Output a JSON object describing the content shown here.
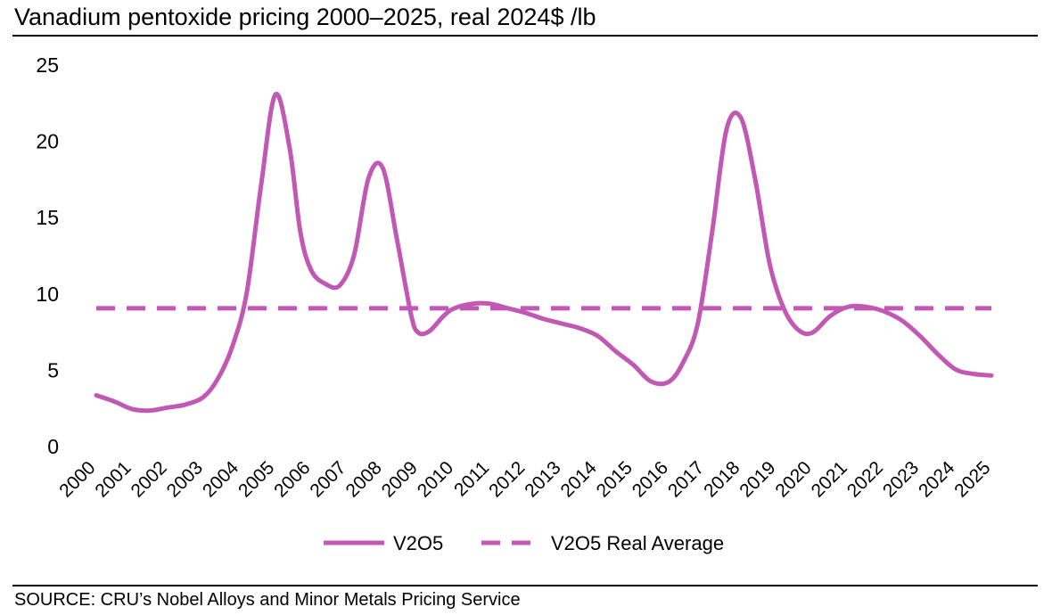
{
  "header": {
    "title": "Vanadium pentoxide pricing 2000–2025, real 2024$ /lb"
  },
  "footer": {
    "source": "SOURCE: CRU’s Nobel Alloys and Minor Metals Pricing Service"
  },
  "colors": {
    "series": "#c058b4",
    "text": "#000000",
    "rule": "#000000"
  },
  "chart_data": {
    "type": "line",
    "title": "Vanadium pentoxide pricing 2000–2025, real 2024$ /lb",
    "xlabel": "",
    "ylabel": "",
    "ylim": [
      0,
      25
    ],
    "yticks": [
      "0",
      "5",
      "10",
      "15",
      "20",
      "25"
    ],
    "grid": false,
    "legend_position": "bottom-center",
    "categories": [
      "2000",
      "2001",
      "2002",
      "2003",
      "2004",
      "2005",
      "2006",
      "2007",
      "2008",
      "2009",
      "2010",
      "2011",
      "2012",
      "2013",
      "2014",
      "2015",
      "2016",
      "2017",
      "2018",
      "2019",
      "2020",
      "2021",
      "2022",
      "2023",
      "2024",
      "2025"
    ],
    "series": [
      {
        "name": "V2O5",
        "style": "solid",
        "x": [
          2000.0,
          2000.5,
          2001.0,
          2001.5,
          2002.0,
          2002.5,
          2003.0,
          2003.4,
          2003.8,
          2004.2,
          2004.6,
          2005.0,
          2005.4,
          2005.7,
          2006.0,
          2006.4,
          2006.8,
          2007.2,
          2007.6,
          2008.0,
          2008.4,
          2008.8,
          2009.0,
          2009.3,
          2009.7,
          2010.0,
          2010.5,
          2011.0,
          2011.5,
          2012.0,
          2012.5,
          2013.0,
          2013.5,
          2014.0,
          2014.5,
          2015.0,
          2015.5,
          2016.0,
          2016.4,
          2016.8,
          2017.2,
          2017.6,
          2018.0,
          2018.4,
          2018.8,
          2019.2,
          2019.6,
          2020.0,
          2020.5,
          2021.0,
          2021.5,
          2022.0,
          2022.5,
          2023.0,
          2023.5,
          2024.0,
          2024.5,
          2025.0
        ],
        "values": [
          3.3,
          2.9,
          2.4,
          2.3,
          2.5,
          2.7,
          3.2,
          4.4,
          6.5,
          10.0,
          17.0,
          23.0,
          19.5,
          14.0,
          11.5,
          10.6,
          10.5,
          12.5,
          17.5,
          18.2,
          13.5,
          8.5,
          7.4,
          7.5,
          8.5,
          9.0,
          9.3,
          9.3,
          9.0,
          8.7,
          8.3,
          8.0,
          7.7,
          7.2,
          6.2,
          5.3,
          4.2,
          4.2,
          5.5,
          8.0,
          14.0,
          20.7,
          21.5,
          17.5,
          12.0,
          9.0,
          7.6,
          7.4,
          8.5,
          9.1,
          9.1,
          8.8,
          8.2,
          7.2,
          6.0,
          5.0,
          4.7,
          4.6
        ]
      },
      {
        "name": "V2O5 Real Average",
        "style": "dashed",
        "x": [
          2000,
          2025
        ],
        "values": [
          9.0,
          9.0
        ]
      }
    ]
  }
}
